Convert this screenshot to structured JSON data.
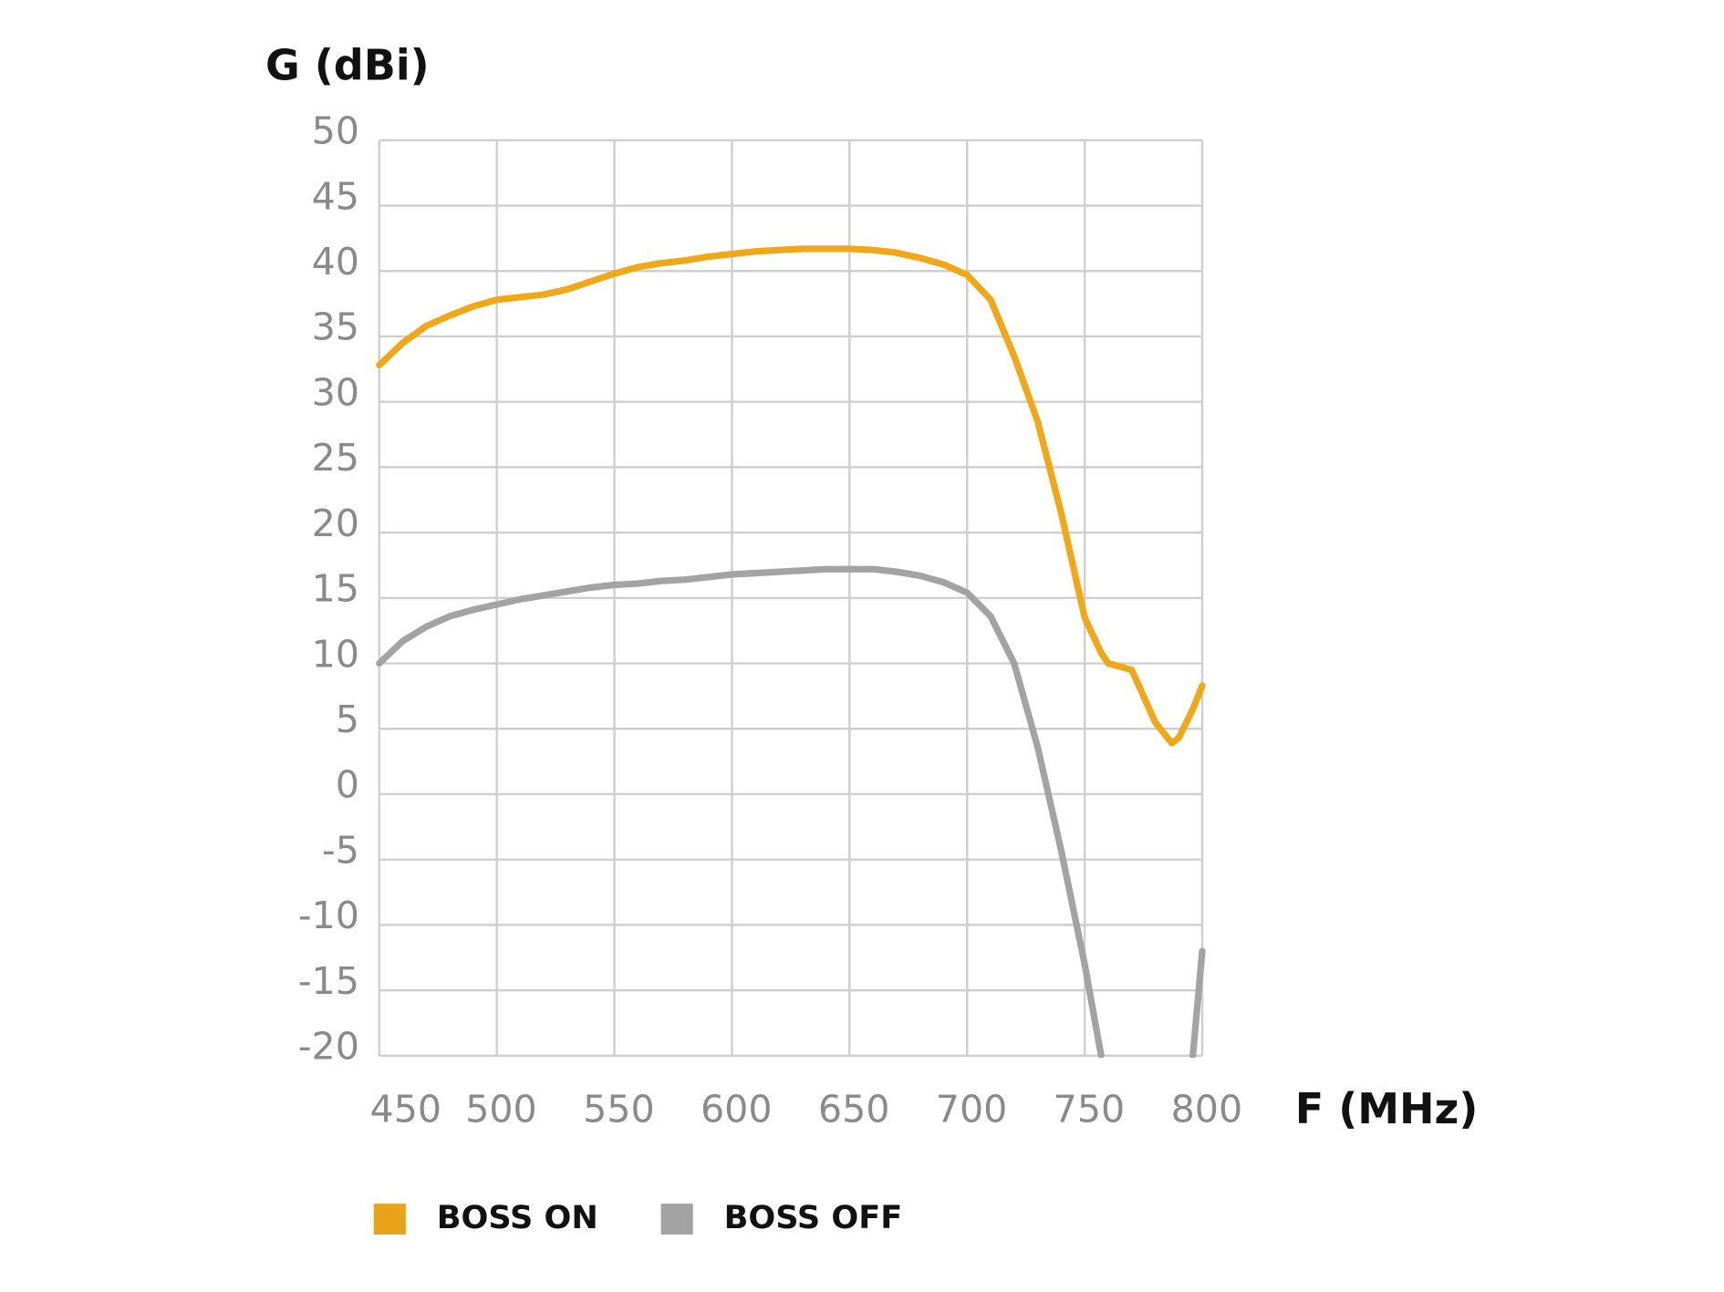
{
  "chart_data": {
    "type": "line",
    "y_label": "G (dBi)",
    "x_label": "F (MHz)",
    "x": [
      450,
      460,
      470,
      480,
      490,
      500,
      510,
      520,
      530,
      540,
      550,
      560,
      570,
      580,
      590,
      600,
      610,
      620,
      630,
      640,
      650,
      660,
      670,
      680,
      690,
      700,
      710,
      720,
      730,
      740,
      750,
      757,
      760,
      770,
      780,
      787,
      790,
      796,
      800
    ],
    "series": [
      {
        "name": "BOSS ON",
        "color": "#f0a818",
        "legend_color": "#e8a31a",
        "values": [
          32.8,
          34.5,
          35.8,
          36.6,
          37.3,
          37.8,
          38.0,
          38.2,
          38.6,
          39.2,
          39.8,
          40.3,
          40.6,
          40.8,
          41.1,
          41.3,
          41.5,
          41.6,
          41.7,
          41.7,
          41.7,
          41.6,
          41.4,
          41.0,
          40.5,
          39.7,
          37.8,
          33.5,
          28.5,
          21.5,
          13.5,
          10.8,
          10.0,
          9.5,
          5.5,
          3.9,
          4.3,
          6.5,
          8.3
        ]
      },
      {
        "name": "BOSS OFF",
        "color": "#a3a3a3",
        "legend_color": "#a3a3a3",
        "values": [
          10.0,
          11.7,
          12.8,
          13.6,
          14.1,
          14.5,
          14.9,
          15.2,
          15.5,
          15.8,
          16.0,
          16.1,
          16.3,
          16.4,
          16.6,
          16.8,
          16.9,
          17.0,
          17.1,
          17.2,
          17.2,
          17.2,
          17.0,
          16.7,
          16.2,
          15.4,
          13.6,
          10.0,
          3.6,
          -4.3,
          -13.0,
          -20.0,
          null,
          null,
          null,
          null,
          null,
          -20.0,
          -12.0
        ]
      }
    ],
    "xlim": [
      450,
      800
    ],
    "xticks": [
      450,
      500,
      550,
      600,
      650,
      700,
      750,
      800
    ],
    "ylim": [
      -20,
      50
    ],
    "yticks": [
      50,
      45,
      40,
      35,
      30,
      25,
      20,
      15,
      10,
      5,
      0,
      -5,
      -10,
      -15,
      -20
    ],
    "grid": true
  }
}
